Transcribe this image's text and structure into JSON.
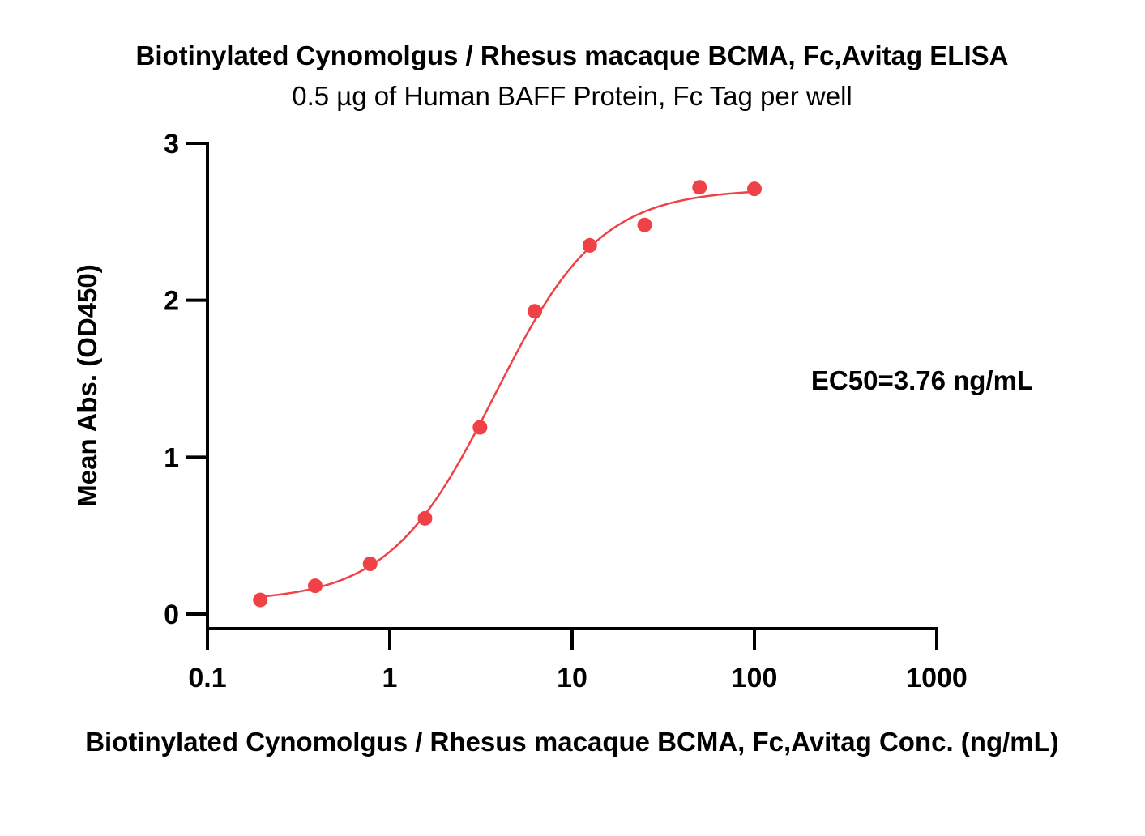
{
  "chart_data": {
    "type": "scatter",
    "title": "Biotinylated Cynomolgus / Rhesus macaque BCMA, Fc,Avitag ELISA",
    "subtitle": "0.5 µg of Human BAFF Protein, Fc Tag per well",
    "xlabel": "Biotinylated Cynomolgus / Rhesus macaque BCMA, Fc,Avitag Conc. (ng/mL)",
    "ylabel": "Mean Abs. (OD450)",
    "x_scale": "log",
    "xlim": [
      0.1,
      1000
    ],
    "ylim": [
      0,
      3
    ],
    "x_ticks": [
      0.1,
      1,
      10,
      100,
      1000
    ],
    "x_tick_labels": [
      "0.1",
      "1",
      "10",
      "100",
      "1000"
    ],
    "y_ticks": [
      0,
      1,
      2,
      3
    ],
    "y_tick_labels": [
      "0",
      "1",
      "2",
      "3"
    ],
    "grid": false,
    "annotation": "EC50=3.76 ng/mL",
    "color": "#ef4146",
    "series": [
      {
        "x": [
          0.195,
          0.39,
          0.78,
          1.56,
          3.125,
          6.25,
          12.5,
          25,
          50,
          100
        ],
        "y": [
          0.09,
          0.18,
          0.32,
          0.61,
          1.19,
          1.93,
          2.35,
          2.48,
          2.72,
          2.71
        ]
      }
    ],
    "fit": {
      "model": "4PL",
      "bottom": 0.08,
      "top": 2.71,
      "ec50": 3.76,
      "hill": 1.5
    }
  }
}
